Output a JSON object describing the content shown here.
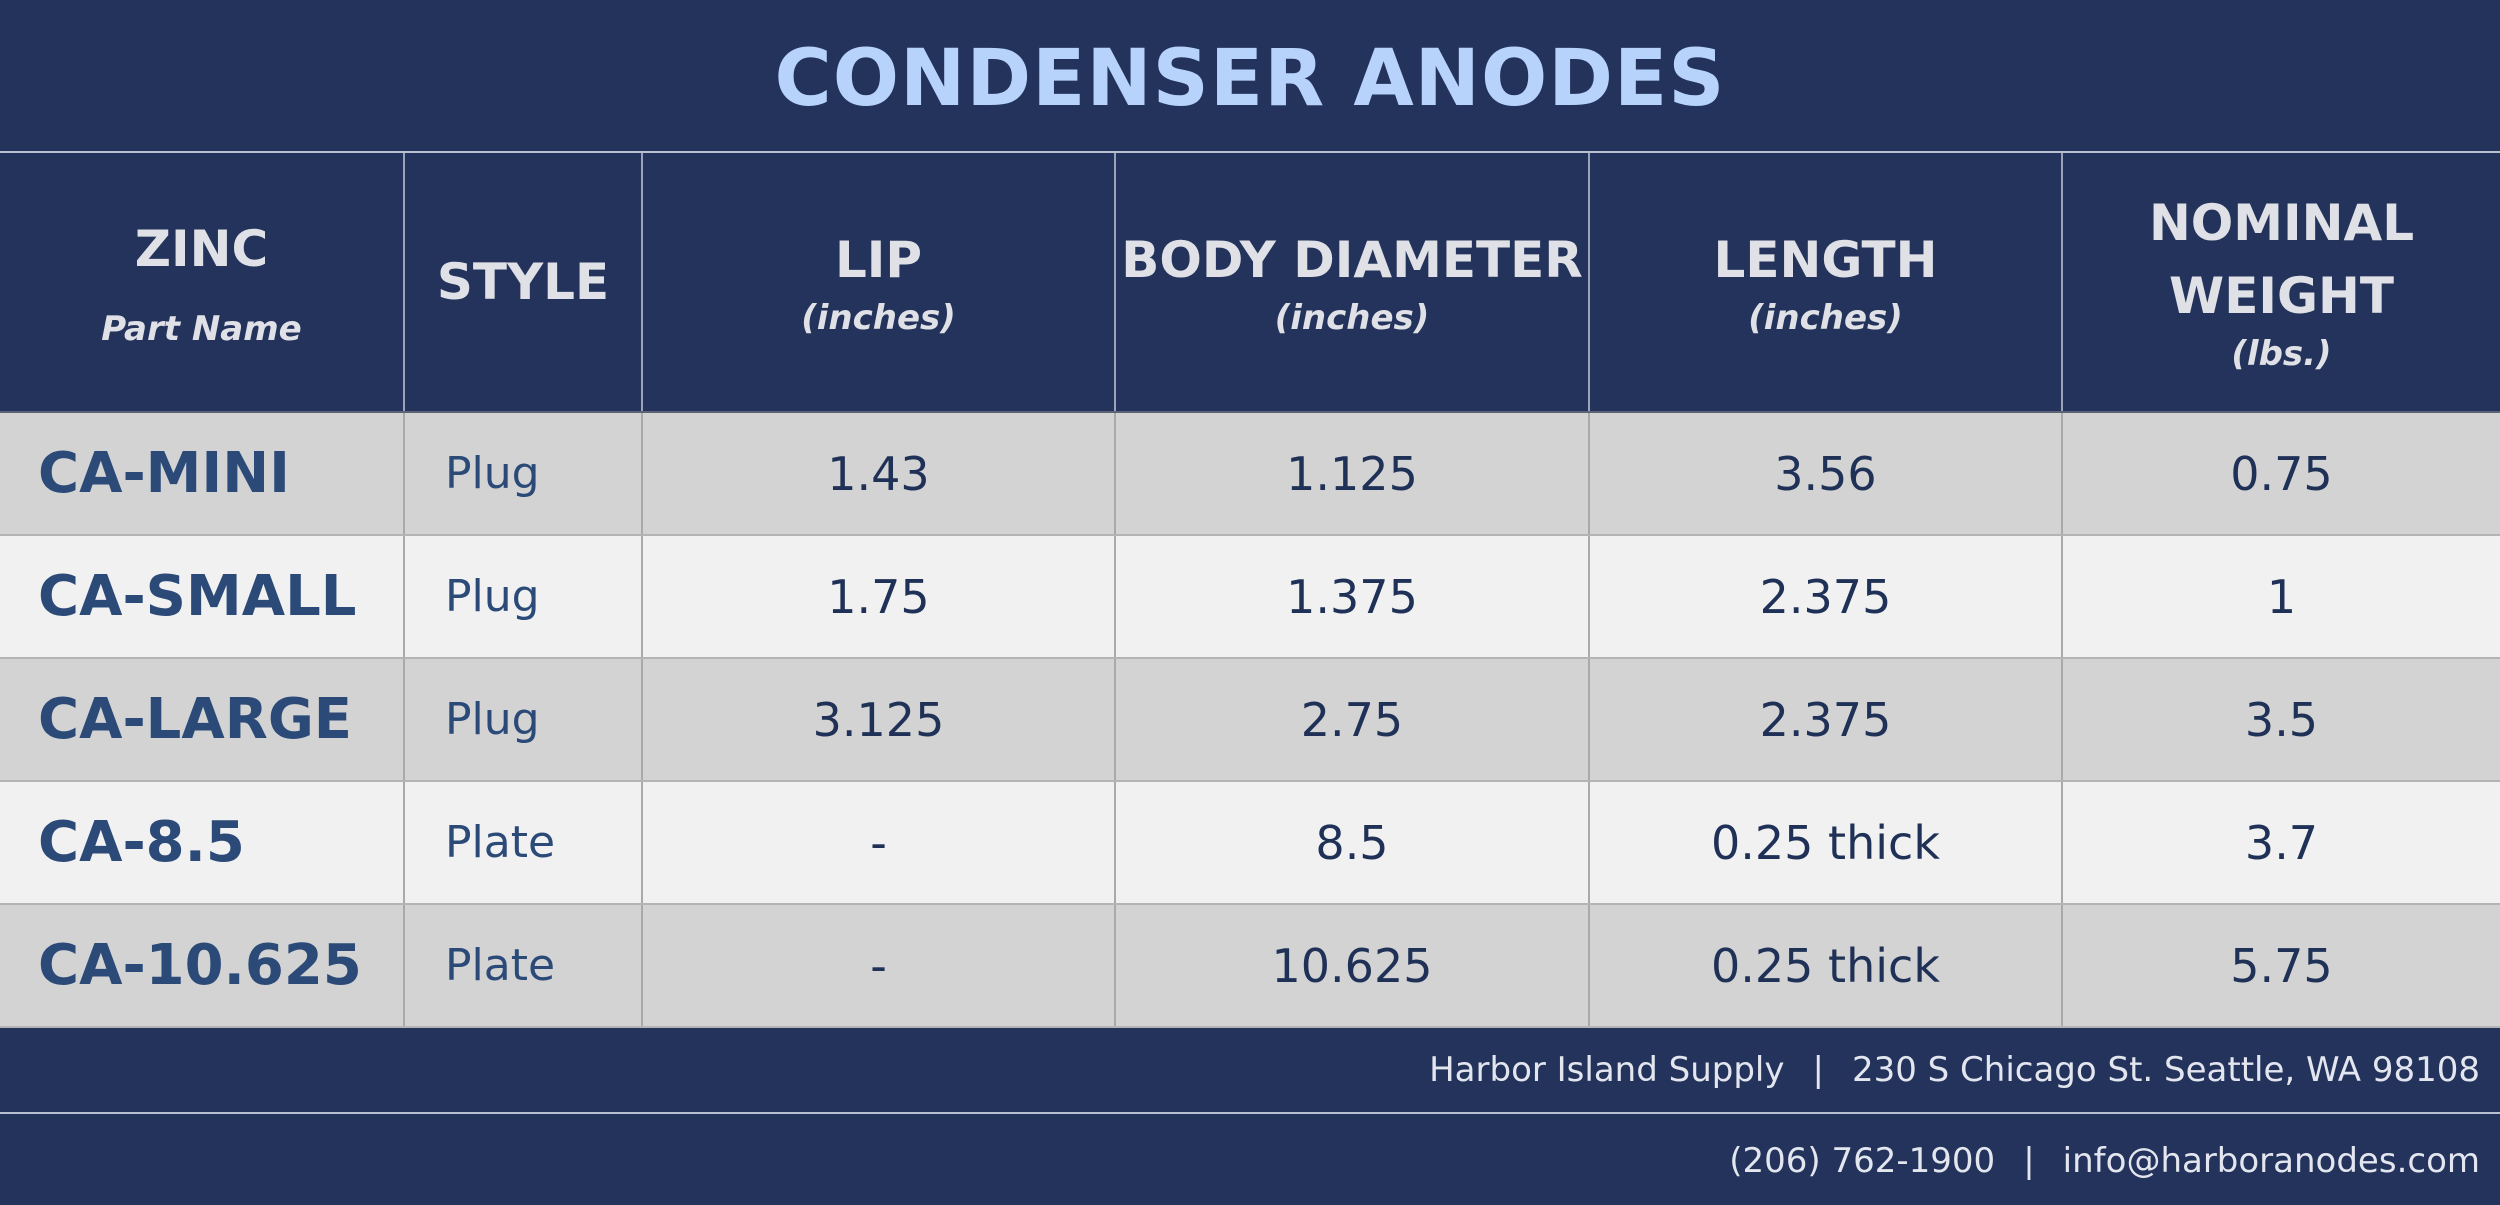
{
  "title": "CONDENSER ANODES",
  "headers": {
    "zinc": "ZINC",
    "zinc_sub": "Part Name",
    "style": "STYLE",
    "lip": "LIP",
    "lip_unit": "(inches)",
    "body_diameter": "BODY DIAMETER",
    "body_diameter_unit": "(inches)",
    "length": "LENGTH",
    "length_unit": "(inches)",
    "weight_line1": "NOMINAL",
    "weight_line2": "WEIGHT",
    "weight_unit": "(lbs.)"
  },
  "rows": [
    {
      "part": "CA-MINI",
      "style": "Plug",
      "lip": "1.43",
      "body_diameter": "1.125",
      "length": "3.56",
      "weight": "0.75"
    },
    {
      "part": "CA-SMALL",
      "style": "Plug",
      "lip": "1.75",
      "body_diameter": "1.375",
      "length": "2.375",
      "weight": "1"
    },
    {
      "part": "CA-LARGE",
      "style": "Plug",
      "lip": "3.125",
      "body_diameter": "2.75",
      "length": "2.375",
      "weight": "3.5"
    },
    {
      "part": "CA-8.5",
      "style": "Plate",
      "lip": "-",
      "body_diameter": "8.5",
      "length": "0.25 thick",
      "weight": "3.7"
    },
    {
      "part": "CA-10.625",
      "style": "Plate",
      "lip": "-",
      "body_diameter": "10.625",
      "length": "0.25 thick",
      "weight": "5.75"
    }
  ],
  "footer": {
    "company": "Harbor Island Supply",
    "separator": "|",
    "address": "230 S Chicago St. Seattle, WA 98108",
    "phone": "(206) 762-1900",
    "email": "info@harboranodes.com"
  },
  "colors": {
    "navy": "#23335c",
    "title": "#b8d3fb",
    "row_dark": "#d3d3d3",
    "row_light": "#f1f1f1",
    "text_blue": "#2b4a78"
  }
}
